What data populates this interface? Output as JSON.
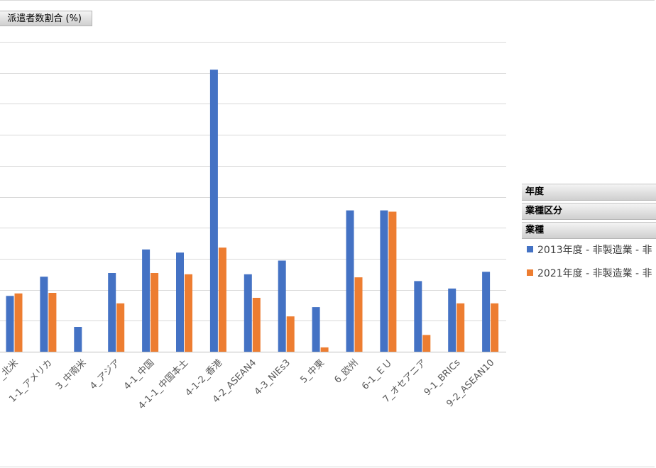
{
  "filter": {
    "field_label": "派遣者数割合 (%)"
  },
  "legend": {
    "headers": [
      "年度",
      "業種区分",
      "業種"
    ],
    "entries": [
      {
        "label": "2013年度 - 非製造業 - 非",
        "color": "#4472c4"
      },
      {
        "label": "2021年度 - 非製造業 - 非",
        "color": "#ed7d31"
      }
    ]
  },
  "chart_data": {
    "type": "bar",
    "categories": [
      "_北米",
      "1-1_アメリカ",
      "3_中南米",
      "4_アジア",
      "4-1_中国",
      "4-1-1_中国本土",
      "4-1-2_香港",
      "4-2_ASEAN4",
      "4-3_NIEs3",
      "5_中東",
      "6_欧州",
      "6-1_ＥＵ",
      "7_オセアニア",
      "9-1_BRICs",
      "9-2_ASEAN10"
    ],
    "series": [
      {
        "name": "2013年度 - 非製造業 - 非",
        "color": "#4472c4",
        "values": [
          9.0,
          12.1,
          4.0,
          12.7,
          16.5,
          16.0,
          45.5,
          12.5,
          14.7,
          7.2,
          22.8,
          22.8,
          11.4,
          10.2,
          12.9
        ]
      },
      {
        "name": "2021年度 - 非製造業 - 非",
        "color": "#ed7d31",
        "values": [
          9.4,
          9.5,
          0,
          7.8,
          12.7,
          12.5,
          16.8,
          8.7,
          5.7,
          0.7,
          12.0,
          22.6,
          2.7,
          7.8,
          7.8
        ]
      }
    ],
    "ylim": [
      0,
      50
    ],
    "grid": true,
    "legend_position": "right"
  }
}
